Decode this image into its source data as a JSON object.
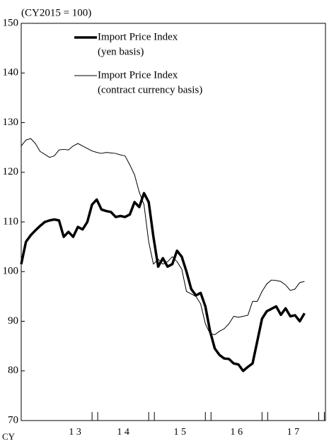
{
  "chart_data": {
    "type": "line",
    "unit_label": "(CY2015 = 100)",
    "x_axis_label": "CY",
    "x": [
      12.7,
      12.7833,
      12.8667,
      12.95,
      13.0333,
      13.1167,
      13.2,
      13.2833,
      13.3667,
      13.45,
      13.5333,
      13.6167,
      13.7,
      13.7833,
      13.8667,
      13.95,
      14.0333,
      14.1167,
      14.2,
      14.2833,
      14.3667,
      14.45,
      14.5333,
      14.6167,
      14.7,
      14.7833,
      14.8667,
      14.95,
      15.0333,
      15.1167,
      15.2,
      15.2833,
      15.3667,
      15.45,
      15.5333,
      15.6167,
      15.7,
      15.7833,
      15.8667,
      15.95,
      16.0333,
      16.1167,
      16.2,
      16.2833,
      16.3667,
      16.45,
      16.5333,
      16.6167,
      16.7,
      16.7833,
      16.8667,
      16.95,
      17.0333,
      17.1167,
      17.2,
      17.2833,
      17.3667,
      17.45,
      17.5333,
      17.6167,
      17.7
    ],
    "series": [
      {
        "name": [
          "Import Price Index",
          "(yen basis)"
        ],
        "color": "#000000",
        "width": 3.5,
        "values": [
          101.5,
          106,
          107.3,
          108.3,
          109.2,
          110,
          110.3,
          110.5,
          110.3,
          107,
          108,
          107,
          109,
          108.5,
          110,
          113.5,
          114.5,
          112.5,
          112.2,
          112,
          111,
          111.2,
          111,
          111.5,
          114,
          113,
          115.8,
          114,
          107,
          101,
          102.7,
          101,
          101.5,
          104.2,
          103,
          100,
          96.5,
          95.2,
          95.7,
          93,
          88,
          84.5,
          83.2,
          82.5,
          82.4,
          81.5,
          81.3,
          80,
          80.8,
          81.5,
          86,
          90.5,
          92,
          92.5,
          93,
          91.3,
          92.6,
          91,
          91.2,
          90,
          91.6
        ]
      },
      {
        "name": [
          "Import Price Index",
          "(contract currency basis)"
        ],
        "color": "#000000",
        "width": 1,
        "values": [
          125.3,
          126.5,
          126.8,
          125.8,
          124.2,
          123.6,
          123,
          123.3,
          124.5,
          124.6,
          124.5,
          125.3,
          125.8,
          125.3,
          124.8,
          124.3,
          124,
          123.8,
          124,
          123.9,
          123.8,
          123.5,
          123.3,
          121.5,
          119.5,
          116,
          113.5,
          106,
          101.5,
          102.5,
          101.5,
          102,
          103,
          102,
          100.5,
          96,
          95.5,
          95,
          93.5,
          89.5,
          87.5,
          87.3,
          88,
          88.5,
          89.5,
          91,
          90.8,
          91,
          91.2,
          94,
          94,
          96,
          97.5,
          98.3,
          98.2,
          98,
          97.3,
          96.2,
          96.5,
          97.8,
          98
        ]
      }
    ],
    "xlim": [
      12.7,
      18.07
    ],
    "xticks": [
      {
        "value": 13.65,
        "label": "1 3"
      },
      {
        "value": 14.5,
        "label": "1 4"
      },
      {
        "value": 15.5,
        "label": "1 5"
      },
      {
        "value": 16.5,
        "label": "1 6"
      },
      {
        "value": 17.5,
        "label": "1 7"
      }
    ],
    "x_boundaries": [
      14,
      15,
      16,
      17,
      18
    ],
    "ylim": [
      70,
      150
    ],
    "yticks": [
      70,
      80,
      90,
      100,
      110,
      120,
      130,
      140,
      150
    ],
    "grid": false
  }
}
